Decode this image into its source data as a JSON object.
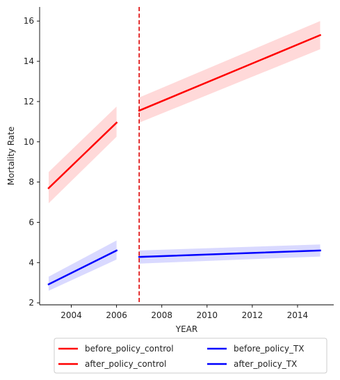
{
  "chart_data": {
    "type": "line",
    "title": "",
    "xlabel": "YEAR",
    "ylabel": "Mortality Rate",
    "xlim": [
      2002.6,
      2015.6
    ],
    "ylim": [
      1.9,
      16.7
    ],
    "x_ticks": [
      "2004",
      "2006",
      "2008",
      "2010",
      "2012",
      "2014"
    ],
    "y_ticks": [
      "2",
      "4",
      "6",
      "8",
      "10",
      "12",
      "14",
      "16"
    ],
    "grid": false,
    "legend": {
      "placement": "bottom-center",
      "columns": 2,
      "entries": [
        "before_policy_control",
        "after_policy_control",
        "before_policy_TX",
        "after_policy_TX"
      ]
    },
    "policy_line": {
      "x": 2007,
      "color": "#dd0000",
      "style": "dashed"
    },
    "series": [
      {
        "name": "before_policy_control",
        "color": "#ff0000",
        "band_color": "#ffcccc",
        "x": [
          2003,
          2006
        ],
        "y": [
          7.7,
          10.95
        ],
        "lower": [
          6.95,
          10.25
        ],
        "upper": [
          8.5,
          11.75
        ]
      },
      {
        "name": "after_policy_control",
        "color": "#ff0000",
        "band_color": "#ffcccc",
        "x": [
          2007,
          2015
        ],
        "y": [
          11.55,
          15.3
        ],
        "lower": [
          10.95,
          14.6
        ],
        "upper": [
          12.2,
          16.0
        ]
      },
      {
        "name": "before_policy_TX",
        "color": "#0000ff",
        "band_color": "#ccccff",
        "x": [
          2003,
          2006
        ],
        "y": [
          2.92,
          4.6
        ],
        "lower": [
          2.6,
          4.15
        ],
        "upper": [
          3.3,
          5.1
        ]
      },
      {
        "name": "after_policy_TX",
        "color": "#0000ff",
        "band_color": "#ccccff",
        "x": [
          2007,
          2015
        ],
        "y": [
          4.28,
          4.6
        ],
        "lower": [
          3.95,
          4.3
        ],
        "upper": [
          4.6,
          4.9
        ]
      }
    ]
  }
}
